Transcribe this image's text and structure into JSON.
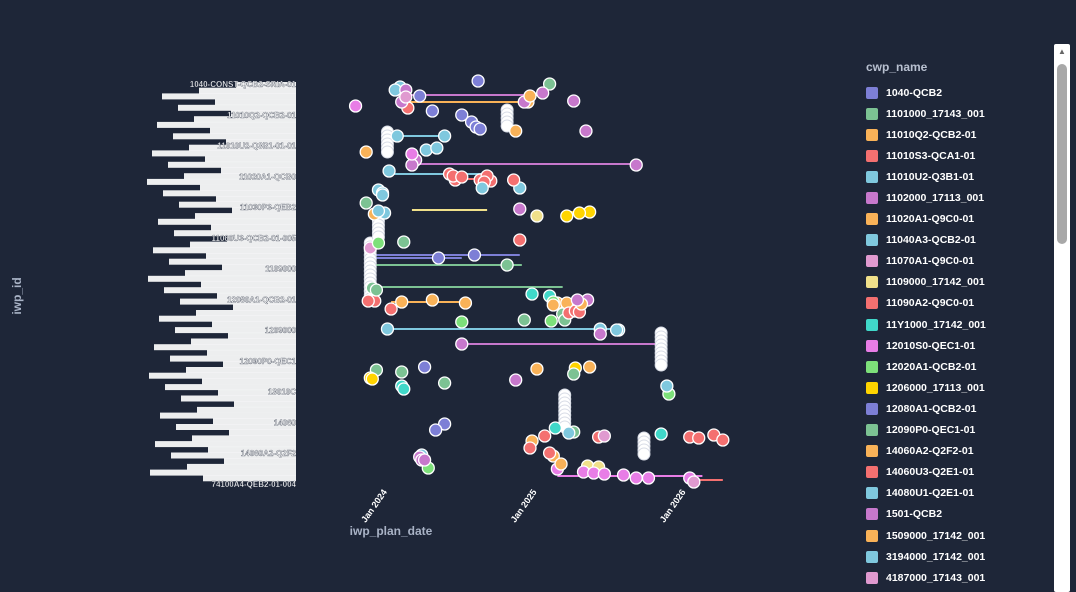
{
  "chart_data": {
    "type": "scatter",
    "xlabel": "iwp_plan_date",
    "ylabel": "iwp_id",
    "x_ticks": [
      "Jan 2024",
      "Jan 2025",
      "Jan 2026"
    ],
    "x_range": [
      "2023-06-01",
      "2026-07-01"
    ],
    "legend_title": "cwp_name",
    "y_tick_labels": [
      "1040-CONST-QCB2-SRIA-01",
      "11010Q2-QCB2-01",
      "11010U2-Q3B1-01-01",
      "11020A1-QCB0",
      "11030P3-QEB2",
      "11060U3-QCB2-01-005",
      "1109000",
      "12080A1-QCB2-01",
      "1209000",
      "12090P0-QEC1",
      "13010C",
      "14060",
      "14060A2-Q2F2",
      "74100A4-QEB2-01-004"
    ],
    "series": [
      {
        "name": "1040-QCB2",
        "color": "#7d7fd6",
        "points": [
          [
            "2024-08-10",
            81
          ],
          [
            "2024-04-20",
            111
          ],
          [
            "2024-05-20",
            424
          ],
          [
            "2024-08-01",
            255
          ],
          [
            "2024-05-05",
            258
          ],
          [
            "2024-04-01",
            367
          ],
          [
            "2024-04-28",
            430
          ]
        ]
      },
      {
        "name": "1101000_17143_001",
        "color": "#7cc293",
        "points": [
          [
            "2025-02-01",
            84
          ],
          [
            "2024-02-10",
            242
          ],
          [
            "2023-11-10",
            203
          ],
          [
            "2025-03-05",
            314
          ],
          [
            "2024-12-01",
            320
          ],
          [
            "2023-11-25",
            288
          ],
          [
            "2023-12-05",
            370
          ],
          [
            "2024-05-20",
            383
          ],
          [
            "2025-04-01",
            432
          ],
          [
            "2025-03-10",
            320
          ]
        ]
      },
      {
        "name": "11010Q2-QCB2-01",
        "color": "#f9b258",
        "points": [
          [
            "2024-12-10",
            102
          ],
          [
            "2024-11-10",
            131
          ],
          [
            "2023-11-10",
            152
          ],
          [
            "2024-04-20",
            300
          ],
          [
            "2025-02-20",
            303
          ],
          [
            "2025-04-10",
            305
          ],
          [
            "2024-12-20",
            441
          ],
          [
            "2025-03-15",
            303
          ],
          [
            "2025-05-10",
            367
          ],
          [
            "2025-02-10",
            456
          ]
        ]
      },
      {
        "name": "11010S3-QCA1-01",
        "color": "#f47070",
        "points": [
          [
            "2024-02-20",
            108
          ],
          [
            "2024-06-01",
            174
          ],
          [
            "2024-06-15",
            180
          ],
          [
            "2024-06-10",
            176
          ],
          [
            "2024-08-15",
            180
          ],
          [
            "2024-09-10",
            181
          ],
          [
            "2024-09-01",
            176
          ],
          [
            "2024-07-01",
            177
          ],
          [
            "2024-08-25",
            182
          ],
          [
            "2024-11-20",
            240
          ],
          [
            "2023-12-01",
            301
          ],
          [
            "2024-01-10",
            309
          ],
          [
            "2025-03-20",
            313
          ],
          [
            "2025-04-05",
            311
          ],
          [
            "2025-04-15",
            312
          ],
          [
            "2024-12-15",
            448
          ],
          [
            "2025-06-01",
            437
          ],
          [
            "2026-01-10",
            437
          ],
          [
            "2026-02-01",
            438
          ],
          [
            "2026-03-10",
            435
          ],
          [
            "2026-04-01",
            440
          ]
        ]
      },
      {
        "name": "11010U2-Q3B1-01",
        "color": "#7fc8de",
        "points": [
          [
            "2024-02-01",
            87
          ],
          [
            "2024-01-20",
            90
          ],
          [
            "2024-01-25",
            136
          ],
          [
            "2024-05-20",
            136
          ],
          [
            "2024-04-05",
            150
          ],
          [
            "2024-05-01",
            148
          ],
          [
            "2024-01-05",
            171
          ],
          [
            "2024-11-20",
            188
          ],
          [
            "2023-12-10",
            190
          ],
          [
            "2023-12-20",
            193
          ],
          [
            "2024-01-01",
            329
          ],
          [
            "2025-06-05",
            329
          ],
          [
            "2025-07-20",
            330
          ],
          [
            "2024-03-25",
            455
          ],
          [
            "2025-03-20",
            433
          ]
        ]
      },
      {
        "name": "1102000_17113_001",
        "color": "#c778cc",
        "points": [
          [
            "2024-02-15",
            90
          ],
          [
            "2025-01-15",
            93
          ],
          [
            "2025-04-01",
            101
          ],
          [
            "2024-02-05",
            102
          ],
          [
            "2025-05-01",
            131
          ],
          [
            "2024-03-10",
            160
          ],
          [
            "2024-03-01",
            165
          ],
          [
            "2025-09-01",
            165
          ],
          [
            "2024-11-20",
            209
          ],
          [
            "2025-05-05",
            300
          ],
          [
            "2025-06-05",
            334
          ],
          [
            "2024-07-01",
            344
          ],
          [
            "2024-03-20",
            457
          ],
          [
            "2024-11-10",
            380
          ],
          [
            "2024-03-25",
            460
          ]
        ]
      },
      {
        "name": "11020A1-Q9C0-01",
        "color": "#f9b258",
        "points": [
          [
            "2025-01-01",
            369
          ]
        ]
      },
      {
        "name": "11040A3-QCB2-01",
        "color": "#7fc8de",
        "points": [
          [
            "2023-12-25",
            213
          ]
        ]
      },
      {
        "name": "11070A1-Q9C0-01",
        "color": "#e09ad0",
        "points": [
          [
            "2024-02-15",
            97
          ],
          [
            "2023-11-20",
            248
          ]
        ]
      },
      {
        "name": "1109000_17142_001",
        "color": "#f0e08a",
        "points": [
          [
            "2025-01-01",
            216
          ],
          [
            "2025-05-05",
            466
          ],
          [
            "2025-06-01",
            467
          ]
        ]
      },
      {
        "name": "11090A2-Q9C0-01",
        "color": "#f47070",
        "points": [
          [
            "2023-11-15",
            301
          ]
        ]
      },
      {
        "name": "11Y1000_17142_001",
        "color": "#40d8c9",
        "points": [
          [
            "2024-12-20",
            294
          ],
          [
            "2025-02-01",
            296
          ],
          [
            "2024-02-05",
            386
          ],
          [
            "2025-11-01",
            434
          ],
          [
            "2025-02-15",
            428
          ],
          [
            "2024-02-10",
            389
          ]
        ]
      },
      {
        "name": "12010S0-QEC1-01",
        "color": "#e87de6",
        "points": [
          [
            "2023-10-15",
            106
          ],
          [
            "2024-03-01",
            154
          ],
          [
            "2025-02-20",
            469
          ],
          [
            "2025-04-25",
            472
          ],
          [
            "2025-05-20",
            473
          ],
          [
            "2025-06-15",
            474
          ],
          [
            "2025-08-01",
            475
          ],
          [
            "2025-09-01",
            478
          ],
          [
            "2025-10-01",
            478
          ],
          [
            "2026-01-10",
            478
          ]
        ]
      },
      {
        "name": "12020A1-QCB2-01",
        "color": "#7de07a",
        "points": [
          [
            "2023-12-10",
            243
          ],
          [
            "2025-02-05",
            321
          ],
          [
            "2025-11-20",
            394
          ],
          [
            "2024-04-10",
            468
          ],
          [
            "2024-07-01",
            322
          ],
          [
            "2025-02-10",
            302
          ]
        ]
      },
      {
        "name": "1206000_17113_001",
        "color": "#ffd400",
        "points": [
          [
            "2025-05-10",
            212
          ],
          [
            "2025-03-15",
            216
          ],
          [
            "2023-11-20",
            378
          ],
          [
            "2023-11-25",
            379
          ],
          [
            "2025-04-05",
            368
          ],
          [
            "2025-04-15",
            213
          ]
        ]
      },
      {
        "name": "12080A1-QCB2-01",
        "color": "#7d7fd6",
        "points": [
          [
            "2024-07-01",
            115
          ],
          [
            "2024-07-25",
            122
          ],
          [
            "2024-08-05",
            127
          ],
          [
            "2024-08-15",
            129
          ],
          [
            "2024-03-20",
            96
          ]
        ]
      },
      {
        "name": "12090P0-QEC1-01",
        "color": "#7cc293",
        "points": [
          [
            "2023-12-05",
            290
          ],
          [
            "2024-10-20",
            265
          ],
          [
            "2025-04-01",
            374
          ],
          [
            "2024-02-05",
            372
          ]
        ]
      },
      {
        "name": "14060A2-Q2F2-01",
        "color": "#f9b258",
        "points": [
          [
            "2024-02-05",
            302
          ],
          [
            "2024-07-10",
            303
          ],
          [
            "2023-11-30",
            214
          ],
          [
            "2025-02-10",
            305
          ],
          [
            "2025-04-20",
            304
          ]
        ]
      },
      {
        "name": "14060U3-Q2E1-01",
        "color": "#f47070",
        "points": [
          [
            "2024-11-05",
            180
          ],
          [
            "2025-01-20",
            436
          ],
          [
            "2025-02-01",
            453
          ]
        ]
      },
      {
        "name": "14080U1-Q2E1-01",
        "color": "#7fc8de",
        "points": [
          [
            "2023-12-10",
            211
          ],
          [
            "2024-08-20",
            188
          ],
          [
            "2023-12-20",
            195
          ]
        ]
      },
      {
        "name": "1501-QCB2",
        "color": "#c778cc",
        "points": [
          [
            "2025-04-10",
            300
          ],
          [
            "2024-12-01",
            102
          ],
          [
            "2024-04-01",
            460
          ]
        ]
      },
      {
        "name": "1509000_17142_001",
        "color": "#f9b258",
        "points": [
          [
            "2025-03-01",
            464
          ],
          [
            "2024-12-15",
            96
          ]
        ]
      },
      {
        "name": "3194000_17142_001",
        "color": "#7fc8de",
        "points": [
          [
            "2025-07-15",
            330
          ],
          [
            "2025-11-15",
            386
          ]
        ]
      },
      {
        "name": "4187000_17143_001",
        "color": "#e09ad0",
        "points": [
          [
            "2026-01-20",
            482
          ],
          [
            "2025-06-15",
            436
          ]
        ]
      }
    ],
    "segments": [
      {
        "color": "#c778cc",
        "from": [
          "2024-01-20",
          95
        ],
        "to": [
          "2025-01-10",
          95
        ]
      },
      {
        "color": "#f9b258",
        "from": [
          "2024-02-15",
          102
        ],
        "to": [
          "2024-12-15",
          102
        ]
      },
      {
        "color": "#7fc8de",
        "from": [
          "2024-02-05",
          136
        ],
        "to": [
          "2024-05-20",
          136
        ]
      },
      {
        "color": "#c778cc",
        "from": [
          "2024-03-05",
          164
        ],
        "to": [
          "2025-09-01",
          164
        ]
      },
      {
        "color": "#7fc8de",
        "from": [
          "2024-01-05",
          174
        ],
        "to": [
          "2024-08-25",
          174
        ]
      },
      {
        "color": "#f47070",
        "from": [
          "2024-06-01",
          179
        ],
        "to": [
          "2024-09-10",
          179
        ]
      },
      {
        "color": "#f0e08a",
        "from": [
          "2024-03-01",
          210
        ],
        "to": [
          "2024-09-01",
          210
        ]
      },
      {
        "color": "#ffd400",
        "from": [
          "2025-03-15",
          212
        ],
        "to": [
          "2025-05-10",
          212
        ]
      },
      {
        "color": "#7d7fd6",
        "from": [
          "2023-11-20",
          255
        ],
        "to": [
          "2024-11-20",
          255
        ]
      },
      {
        "color": "#7d7fd6",
        "from": [
          "2023-11-20",
          258
        ],
        "to": [
          "2024-07-01",
          258
        ]
      },
      {
        "color": "#7cc293",
        "from": [
          "2023-11-20",
          265
        ],
        "to": [
          "2024-11-25",
          265
        ]
      },
      {
        "color": "#7cc293",
        "from": [
          "2023-11-25",
          287
        ],
        "to": [
          "2025-03-05",
          287
        ]
      },
      {
        "color": "#f9b258",
        "from": [
          "2024-01-10",
          302
        ],
        "to": [
          "2024-07-10",
          302
        ]
      },
      {
        "color": "#7fc8de",
        "from": [
          "2024-01-01",
          329
        ],
        "to": [
          "2025-07-20",
          329
        ]
      },
      {
        "color": "#c778cc",
        "from": [
          "2024-07-01",
          344
        ],
        "to": [
          "2025-11-01",
          344
        ]
      },
      {
        "color": "#e87de6",
        "from": [
          "2025-02-20",
          476
        ],
        "to": [
          "2026-02-10",
          476
        ]
      },
      {
        "color": "#f47070",
        "from": [
          "2026-01-10",
          480
        ],
        "to": [
          "2026-04-01",
          480
        ]
      }
    ],
    "white_columns": [
      {
        "x": "2023-11-20",
        "y_from": 243,
        "y_to": 300
      },
      {
        "x": "2023-12-10",
        "y_from": 213,
        "y_to": 240
      },
      {
        "x": "2024-01-01",
        "y_from": 132,
        "y_to": 155
      },
      {
        "x": "2025-03-10",
        "y_from": 395,
        "y_to": 430
      },
      {
        "x": "2025-11-01",
        "y_from": 333,
        "y_to": 368
      },
      {
        "x": "2025-09-20",
        "y_from": 438,
        "y_to": 454
      },
      {
        "x": "2024-10-20",
        "y_from": 110,
        "y_to": 128
      }
    ]
  }
}
